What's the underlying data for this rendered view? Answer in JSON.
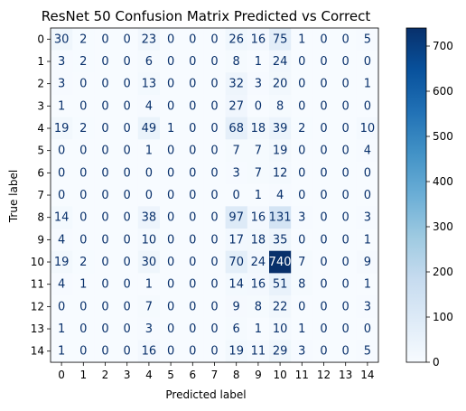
{
  "chart_data": {
    "type": "heatmap",
    "title": "ResNet 50 Confusion Matrix Predicted vs Correct",
    "xlabel": "Predicted label",
    "ylabel": "True label",
    "x_categories": [
      "0",
      "1",
      "2",
      "3",
      "4",
      "5",
      "6",
      "7",
      "8",
      "9",
      "10",
      "11",
      "12",
      "13",
      "14"
    ],
    "y_categories": [
      "0",
      "1",
      "2",
      "3",
      "4",
      "5",
      "6",
      "7",
      "8",
      "9",
      "10",
      "11",
      "12",
      "13",
      "14"
    ],
    "values": [
      [
        30,
        2,
        0,
        0,
        23,
        0,
        0,
        0,
        26,
        16,
        75,
        1,
        0,
        0,
        5
      ],
      [
        3,
        2,
        0,
        0,
        6,
        0,
        0,
        0,
        8,
        1,
        24,
        0,
        0,
        0,
        0
      ],
      [
        3,
        0,
        0,
        0,
        13,
        0,
        0,
        0,
        32,
        3,
        20,
        0,
        0,
        0,
        1
      ],
      [
        1,
        0,
        0,
        0,
        4,
        0,
        0,
        0,
        27,
        0,
        8,
        0,
        0,
        0,
        0
      ],
      [
        19,
        2,
        0,
        0,
        49,
        1,
        0,
        0,
        68,
        18,
        39,
        2,
        0,
        0,
        10
      ],
      [
        0,
        0,
        0,
        0,
        1,
        0,
        0,
        0,
        7,
        7,
        19,
        0,
        0,
        0,
        4
      ],
      [
        0,
        0,
        0,
        0,
        0,
        0,
        0,
        0,
        3,
        7,
        12,
        0,
        0,
        0,
        0
      ],
      [
        0,
        0,
        0,
        0,
        0,
        0,
        0,
        0,
        0,
        1,
        4,
        0,
        0,
        0,
        0
      ],
      [
        14,
        0,
        0,
        0,
        38,
        0,
        0,
        0,
        97,
        16,
        131,
        3,
        0,
        0,
        3
      ],
      [
        4,
        0,
        0,
        0,
        10,
        0,
        0,
        0,
        17,
        18,
        35,
        0,
        0,
        0,
        1
      ],
      [
        19,
        2,
        0,
        0,
        30,
        0,
        0,
        0,
        70,
        24,
        740,
        7,
        0,
        0,
        9
      ],
      [
        4,
        1,
        0,
        0,
        1,
        0,
        0,
        0,
        14,
        16,
        51,
        8,
        0,
        0,
        1
      ],
      [
        0,
        0,
        0,
        0,
        7,
        0,
        0,
        0,
        9,
        8,
        22,
        0,
        0,
        0,
        3
      ],
      [
        1,
        0,
        0,
        0,
        3,
        0,
        0,
        0,
        6,
        1,
        10,
        1,
        0,
        0,
        0
      ],
      [
        1,
        0,
        0,
        0,
        16,
        0,
        0,
        0,
        19,
        11,
        29,
        3,
        0,
        0,
        5
      ]
    ],
    "colormap": "Blues",
    "colorbar_range": [
      0,
      740
    ],
    "colorbar_ticks": [
      0,
      100,
      200,
      300,
      400,
      500,
      600,
      700
    ],
    "grid": false
  }
}
